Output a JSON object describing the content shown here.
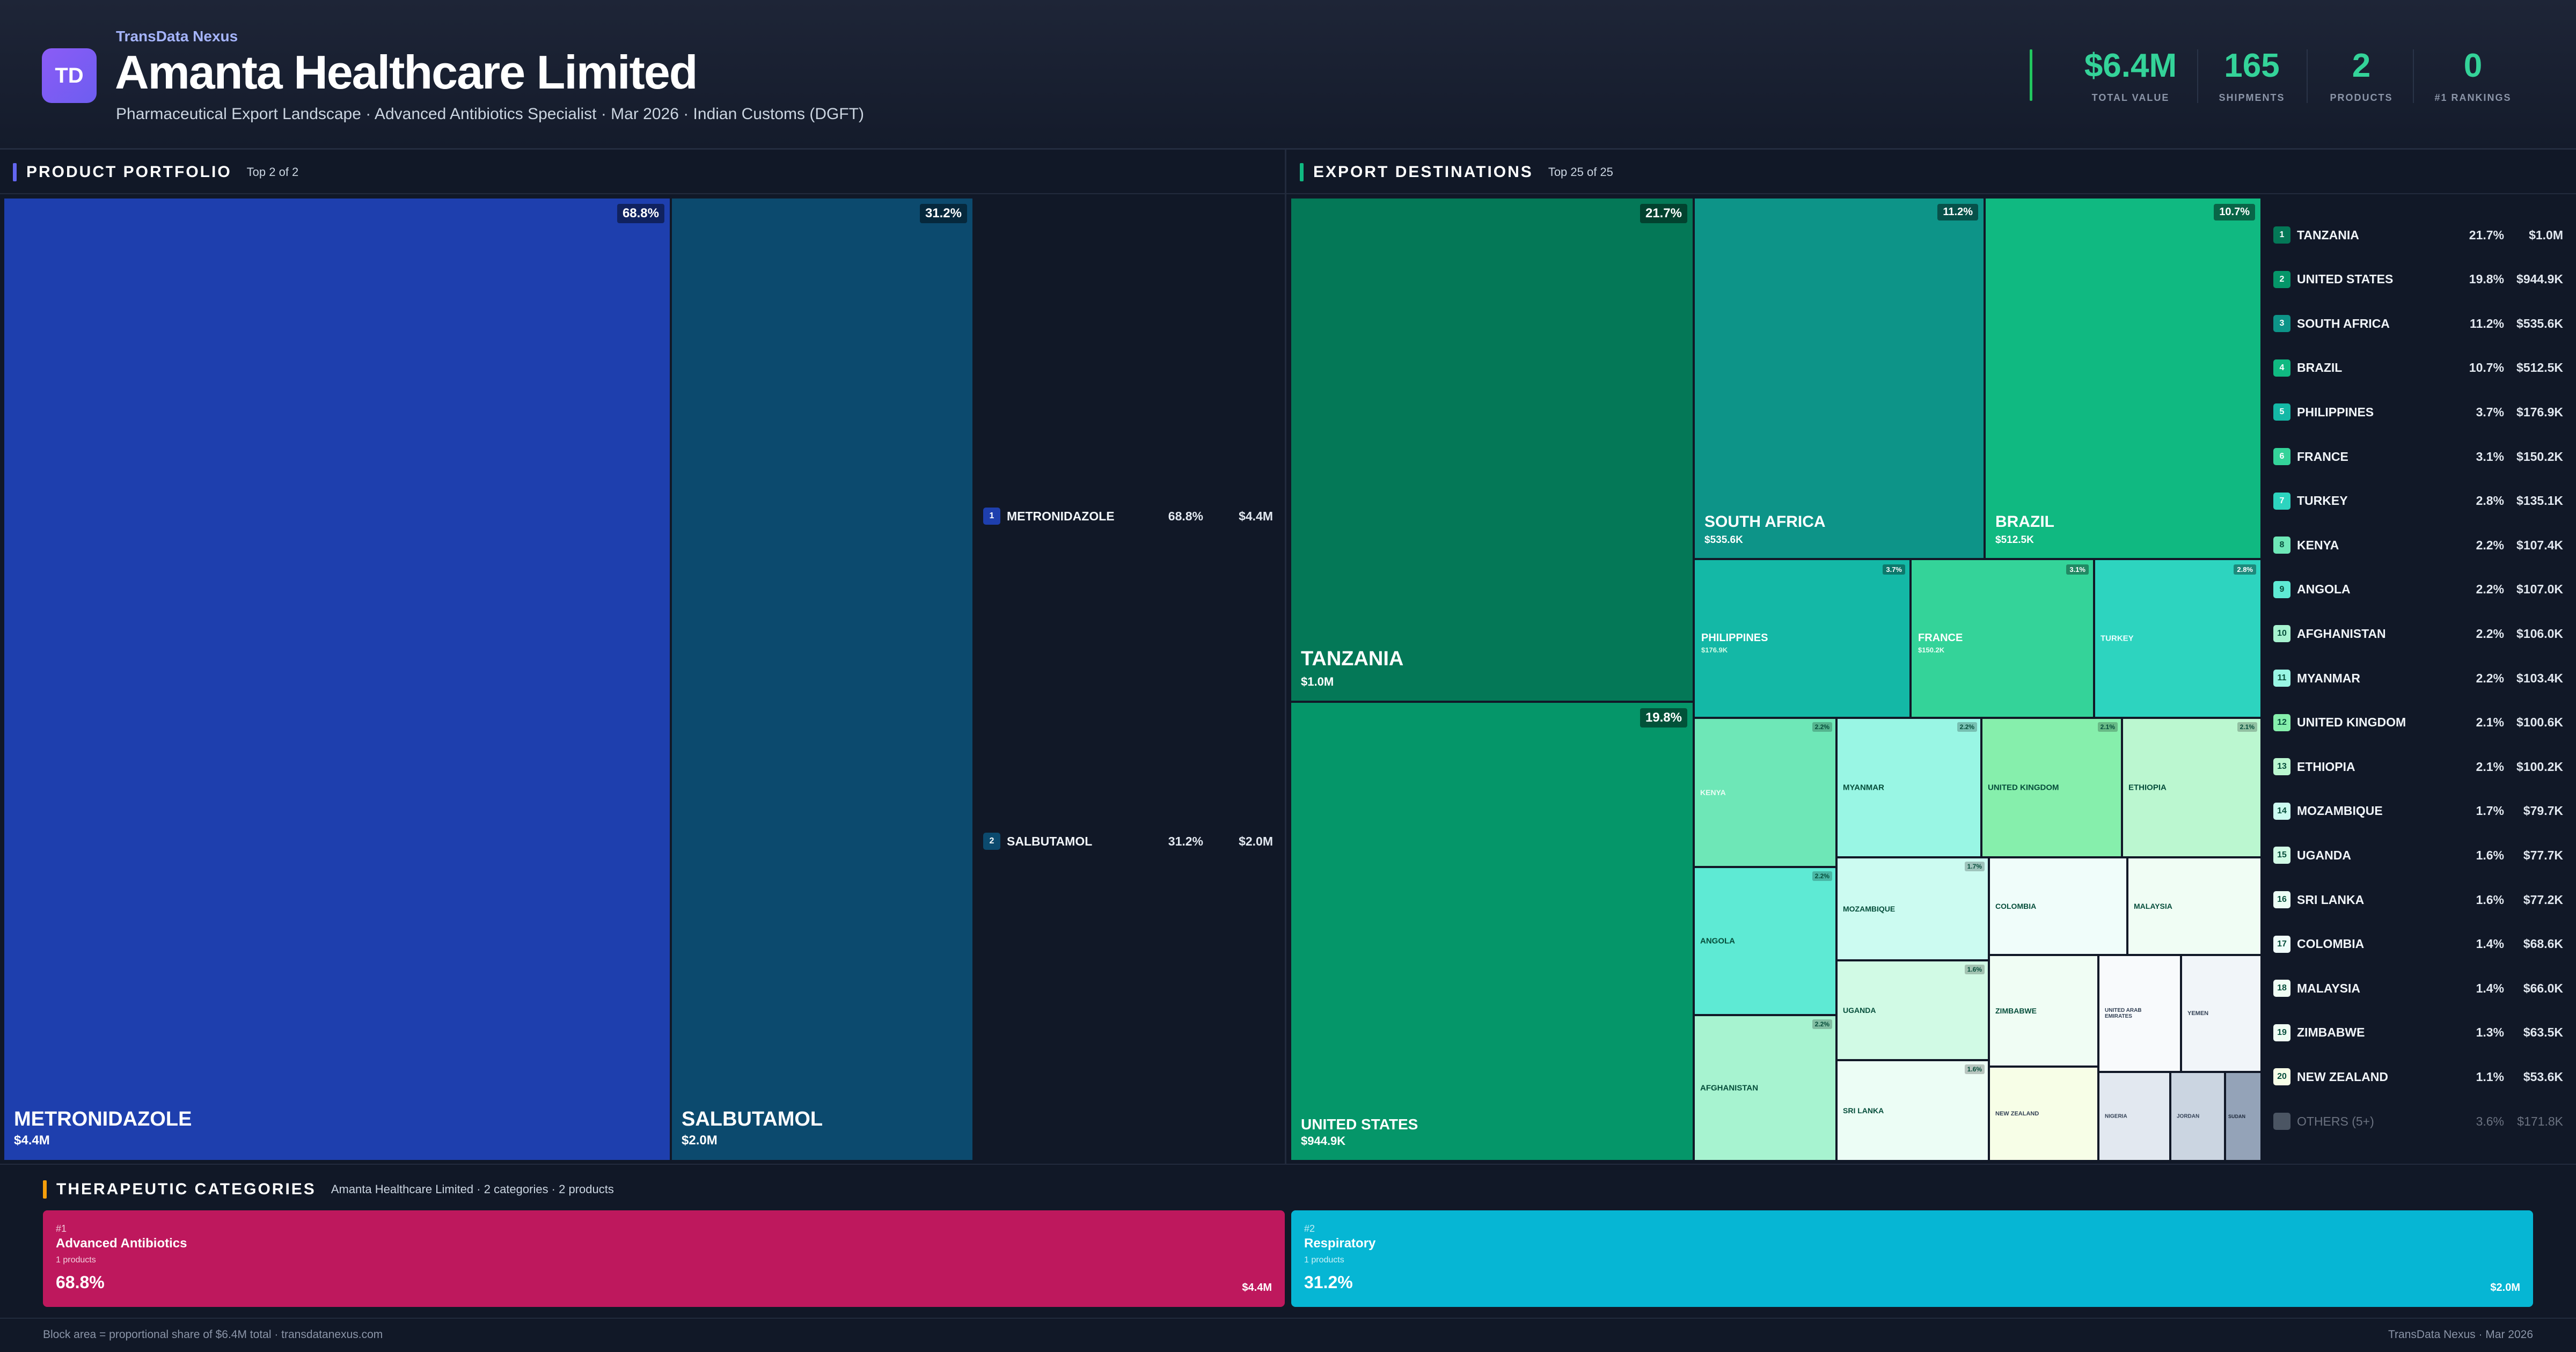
{
  "header": {
    "logo": "TD",
    "brand": "TransData Nexus",
    "company": "Amanta Healthcare Limited",
    "subtitle": "Pharmaceutical Export Landscape · Advanced Antibiotics Specialist · Mar 2026 · Indian Customs (DGFT)",
    "kpis": [
      {
        "value": "$6.4M",
        "label": "TOTAL VALUE"
      },
      {
        "value": "165",
        "label": "SHIPMENTS"
      },
      {
        "value": "2",
        "label": "PRODUCTS"
      },
      {
        "value": "0",
        "label": "#1 RANKINGS"
      }
    ]
  },
  "portfolio": {
    "title": "PRODUCT PORTFOLIO",
    "subtitle": "Top 2 of 2",
    "items": [
      {
        "rank": "1",
        "name": "METRONIDAZOLE",
        "pct": "68.8%",
        "value": "$4.4M",
        "color": "#1e3fae"
      },
      {
        "rank": "2",
        "name": "SALBUTAMOL",
        "pct": "31.2%",
        "value": "$2.0M",
        "color": "#0c4a6e"
      }
    ]
  },
  "destinations": {
    "title": "EXPORT DESTINATIONS",
    "subtitle": "Top 25 of 25",
    "tiles": [
      {
        "name": "TANZANIA",
        "pct": "21.7%",
        "value": "$1.0M",
        "color": "#047857"
      },
      {
        "name": "UNITED STATES",
        "pct": "19.8%",
        "value": "$944.9K",
        "color": "#059669"
      },
      {
        "name": "SOUTH AFRICA",
        "pct": "11.2%",
        "value": "$535.6K",
        "color": "#0d9488"
      },
      {
        "name": "BRAZIL",
        "pct": "10.7%",
        "value": "$512.5K",
        "color": "#10b981"
      },
      {
        "name": "PHILIPPINES",
        "pct": "3.7%",
        "value": "$176.9K",
        "color": "#14b8a6"
      },
      {
        "name": "FRANCE",
        "pct": "3.1%",
        "value": "$150.2K",
        "color": "#34d399"
      },
      {
        "name": "TURKEY",
        "pct": "2.8%",
        "value": "$135.1K",
        "color": "#2dd4bf"
      },
      {
        "name": "KENYA",
        "pct": "2.2%",
        "value": "$107.4K",
        "color": "#6ee7b7"
      },
      {
        "name": "ANGOLA",
        "pct": "2.2%",
        "value": "$107.0K",
        "color": "#5eead4"
      },
      {
        "name": "AFGHANISTAN",
        "pct": "2.2%",
        "value": "$106.0K",
        "color": "#a7f3d0"
      },
      {
        "name": "MYANMAR",
        "pct": "2.2%",
        "value": "$103.4K",
        "color": "#99f6e4"
      },
      {
        "name": "UNITED KINGDOM",
        "pct": "2.1%",
        "value": "$100.6K",
        "color": "#86efac"
      },
      {
        "name": "ETHIOPIA",
        "pct": "2.1%",
        "value": "$100.2K",
        "color": "#bbf7d0"
      },
      {
        "name": "MOZAMBIQUE",
        "pct": "1.7%",
        "value": "$79.7K",
        "color": "#ccfbf1"
      },
      {
        "name": "UGANDA",
        "pct": "1.6%",
        "value": "$77.7K",
        "color": "#d1fae5"
      },
      {
        "name": "SRI LANKA",
        "pct": "1.6%",
        "value": "$77.2K",
        "color": "#ecfdf5"
      },
      {
        "name": "COLOMBIA",
        "pct": "1.4%",
        "value": "$68.6K",
        "color": "#f0fdfa"
      },
      {
        "name": "MALAYSIA",
        "pct": "1.4%",
        "value": "$66.0K",
        "color": "#f0fdf4"
      },
      {
        "name": "ZIMBABWE",
        "pct": "1.3%",
        "value": "$63.5K",
        "color": "#f0fdf4"
      },
      {
        "name": "NEW ZEALAND",
        "pct": "1.1%",
        "value": "$53.6K",
        "color": "#f7fee7"
      },
      {
        "name": "UNITED ARAB EMIRATES",
        "color": "#f8fafc"
      },
      {
        "name": "YEMEN",
        "color": "#f1f5f9"
      },
      {
        "name": "NIGERIA",
        "color": "#e2e8f0"
      },
      {
        "name": "JORDAN",
        "color": "#cbd5e1"
      },
      {
        "name": "SUDAN",
        "color": "#94a3b8"
      }
    ],
    "legend": [
      {
        "rank": "1",
        "name": "TANZANIA",
        "pct": "21.7%",
        "value": "$1.0M",
        "color": "#047857"
      },
      {
        "rank": "2",
        "name": "UNITED STATES",
        "pct": "19.8%",
        "value": "$944.9K",
        "color": "#059669"
      },
      {
        "rank": "3",
        "name": "SOUTH AFRICA",
        "pct": "11.2%",
        "value": "$535.6K",
        "color": "#0d9488"
      },
      {
        "rank": "4",
        "name": "BRAZIL",
        "pct": "10.7%",
        "value": "$512.5K",
        "color": "#10b981"
      },
      {
        "rank": "5",
        "name": "PHILIPPINES",
        "pct": "3.7%",
        "value": "$176.9K",
        "color": "#14b8a6"
      },
      {
        "rank": "6",
        "name": "FRANCE",
        "pct": "3.1%",
        "value": "$150.2K",
        "color": "#34d399"
      },
      {
        "rank": "7",
        "name": "TURKEY",
        "pct": "2.8%",
        "value": "$135.1K",
        "color": "#2dd4bf"
      },
      {
        "rank": "8",
        "name": "KENYA",
        "pct": "2.2%",
        "value": "$107.4K",
        "color": "#6ee7b7"
      },
      {
        "rank": "9",
        "name": "ANGOLA",
        "pct": "2.2%",
        "value": "$107.0K",
        "color": "#5eead4"
      },
      {
        "rank": "10",
        "name": "AFGHANISTAN",
        "pct": "2.2%",
        "value": "$106.0K",
        "color": "#a7f3d0"
      },
      {
        "rank": "11",
        "name": "MYANMAR",
        "pct": "2.2%",
        "value": "$103.4K",
        "color": "#99f6e4"
      },
      {
        "rank": "12",
        "name": "UNITED KINGDOM",
        "pct": "2.1%",
        "value": "$100.6K",
        "color": "#86efac"
      },
      {
        "rank": "13",
        "name": "ETHIOPIA",
        "pct": "2.1%",
        "value": "$100.2K",
        "color": "#bbf7d0"
      },
      {
        "rank": "14",
        "name": "MOZAMBIQUE",
        "pct": "1.7%",
        "value": "$79.7K",
        "color": "#ccfbf1"
      },
      {
        "rank": "15",
        "name": "UGANDA",
        "pct": "1.6%",
        "value": "$77.7K",
        "color": "#d1fae5"
      },
      {
        "rank": "16",
        "name": "SRI LANKA",
        "pct": "1.6%",
        "value": "$77.2K",
        "color": "#ecfdf5"
      },
      {
        "rank": "17",
        "name": "COLOMBIA",
        "pct": "1.4%",
        "value": "$68.6K",
        "color": "#f0fdfa"
      },
      {
        "rank": "18",
        "name": "MALAYSIA",
        "pct": "1.4%",
        "value": "$66.0K",
        "color": "#f0fdf4"
      },
      {
        "rank": "19",
        "name": "ZIMBABWE",
        "pct": "1.3%",
        "value": "$63.5K",
        "color": "#f0fdf4"
      },
      {
        "rank": "20",
        "name": "NEW ZEALAND",
        "pct": "1.1%",
        "value": "$53.6K",
        "color": "#f7fee7"
      }
    ],
    "others": {
      "name": "OTHERS (5+)",
      "pct": "3.6%",
      "value": "$171.8K"
    }
  },
  "categories": {
    "title": "THERAPEUTIC CATEGORIES",
    "subtitle": "Amanta Healthcare Limited · 2 categories · 2 products",
    "items": [
      {
        "rank": "#1",
        "name": "Advanced Antibiotics",
        "count": "1 products",
        "pct": "68.8%",
        "value": "$4.4M",
        "color": "#be185d"
      },
      {
        "rank": "#2",
        "name": "Respiratory",
        "count": "1 products",
        "pct": "31.2%",
        "value": "$2.0M",
        "color": "#06b6d4"
      }
    ]
  },
  "footer": {
    "left": "Block area = proportional share of $6.4M total · transdatanexus.com",
    "right": "TransData Nexus · Mar 2026"
  },
  "colors": {
    "accent_portfolio": "#6366f1",
    "accent_dest": "#10b981",
    "accent_categories": "#f59e0b",
    "kpi": "#34d399"
  }
}
